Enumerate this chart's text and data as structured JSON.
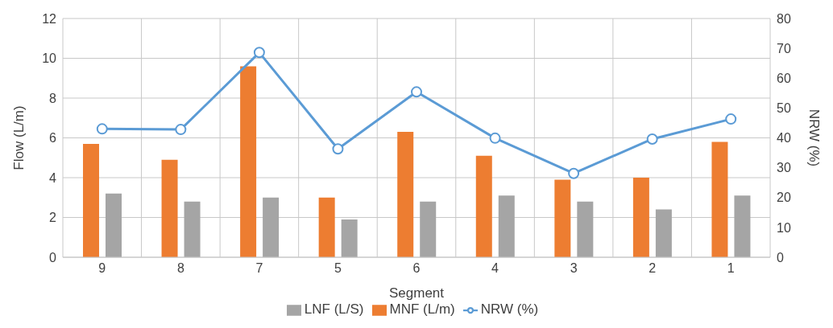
{
  "chart_data": {
    "type": "bar",
    "xlabel": "Segment",
    "ylabel": "Flow (L/m)",
    "y2label": "NRW (%)",
    "categories": [
      "9",
      "8",
      "7",
      "5",
      "6",
      "4",
      "3",
      "2",
      "1"
    ],
    "series": [
      {
        "name": "MNF (L/m)",
        "color": "#ed7d31",
        "values": [
          5.7,
          4.9,
          9.6,
          3.0,
          6.3,
          5.1,
          3.9,
          4.0,
          5.8
        ]
      },
      {
        "name": "LNF (L/S)",
        "color": "#a5a5a5",
        "values": [
          3.2,
          2.8,
          3.0,
          1.9,
          2.8,
          3.1,
          2.8,
          2.4,
          3.1
        ]
      },
      {
        "name": "NRW (%)",
        "type": "line",
        "axis": "y2",
        "color": "#5b9bd5",
        "values": [
          43,
          42.8,
          68.6,
          36.3,
          55.4,
          39.9,
          28.1,
          39.6,
          46.3
        ]
      }
    ],
    "ylim": [
      0,
      12
    ],
    "yticks": [
      0,
      2,
      4,
      6,
      8,
      10,
      12
    ],
    "y2lim": [
      0,
      80
    ],
    "y2ticks": [
      0,
      10,
      20,
      30,
      40,
      50,
      60,
      70,
      80
    ],
    "grid": true,
    "legend": "bottom",
    "marker": "circle",
    "line_style": "solid"
  }
}
